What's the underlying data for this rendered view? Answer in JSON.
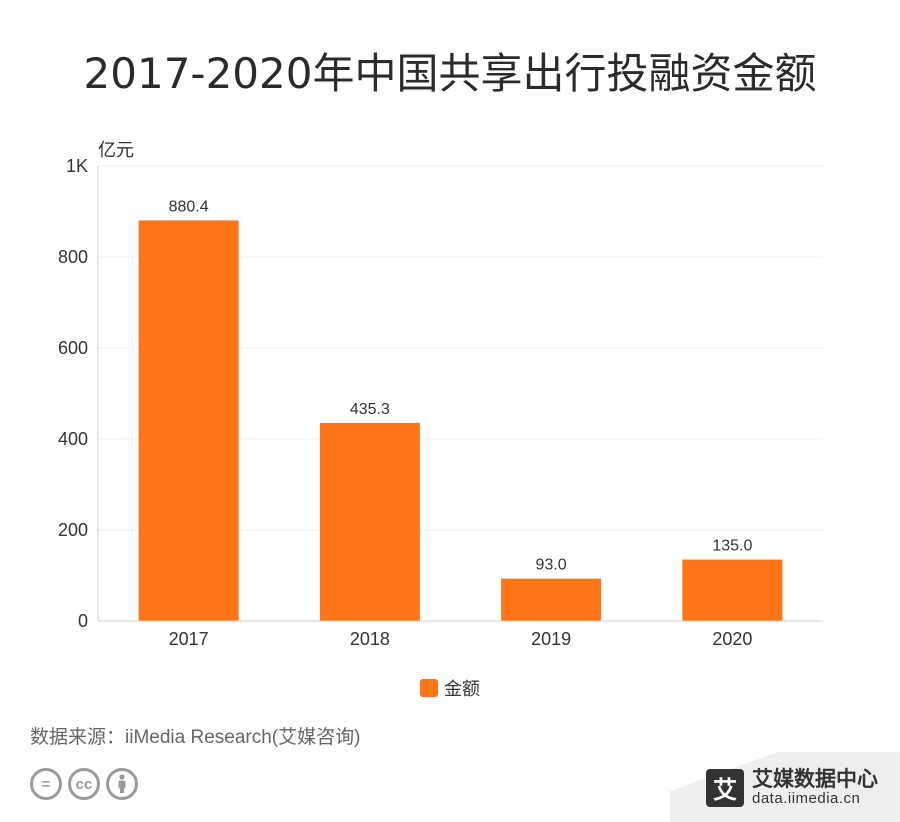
{
  "title": "2017-2020年中国共享出行投融资金额",
  "chart_data": {
    "type": "bar",
    "ylabel": "亿元",
    "categories": [
      "2017",
      "2018",
      "2019",
      "2020"
    ],
    "series": [
      {
        "name": "金额",
        "values": [
          880.4,
          435.3,
          93.0,
          135.0
        ],
        "labels": [
          "880.4",
          "435.3",
          "93.0",
          "135.0"
        ],
        "color": "#fe7518"
      }
    ],
    "ylim": [
      0,
      1000
    ],
    "yticks": [
      0,
      200,
      400,
      600,
      800,
      1000
    ],
    "ytick_labels": [
      "0",
      "200",
      "400",
      "600",
      "800",
      "1K"
    ],
    "grid": true,
    "legend": "bottom-center"
  },
  "source": "数据来源：iiMedia Research(艾媒咨询)",
  "footer": {
    "cc_icons": [
      "=",
      "cc",
      "person-icon"
    ],
    "brand_logo": "艾",
    "brand_name": "艾媒数据中心",
    "brand_url": "data.iimedia.cn"
  }
}
